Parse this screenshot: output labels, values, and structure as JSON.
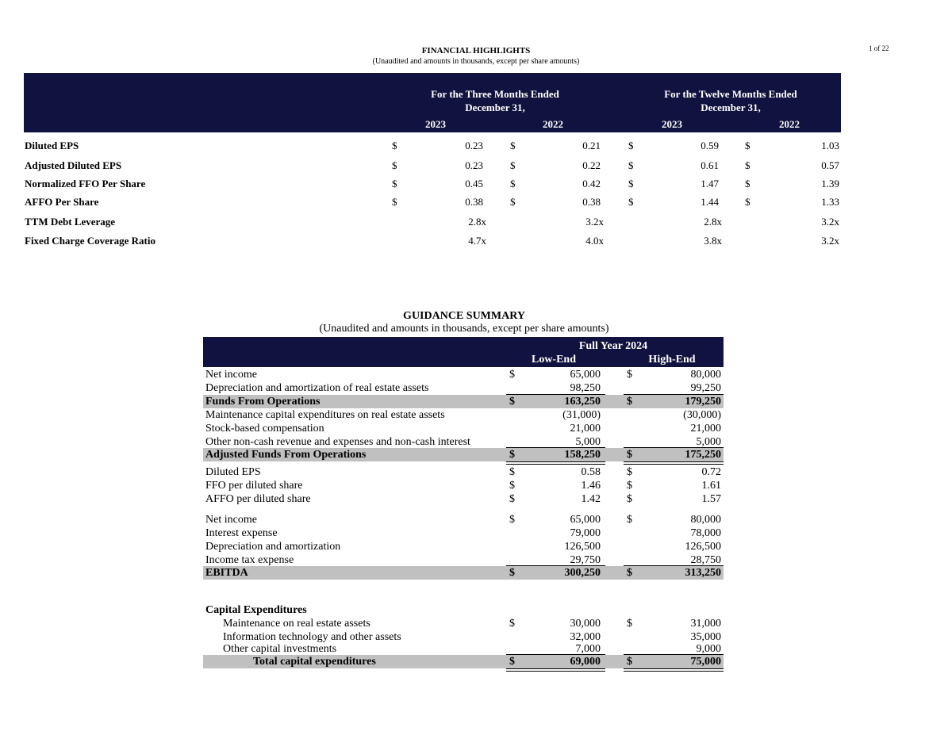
{
  "page_number": "1 of 22",
  "financial_highlights": {
    "title": "FINANCIAL HIGHLIGHTS",
    "subtitle": "(Unaudited and amounts in thousands, except per share amounts)",
    "header": {
      "three_months": "For the Three Months Ended",
      "twelve_months": "For the Twelve Months Ended",
      "date": "December 31,",
      "years": [
        "2023",
        "2022",
        "2023",
        "2022"
      ]
    },
    "rows": [
      {
        "label": "Diluted EPS",
        "cur": [
          "$",
          "$",
          "$",
          "$"
        ],
        "values": [
          "0.23",
          "0.21",
          "0.59",
          "1.03"
        ]
      },
      {
        "label": "Adjusted Diluted EPS",
        "cur": [
          "$",
          "$",
          "$",
          "$"
        ],
        "values": [
          "0.23",
          "0.22",
          "0.61",
          "0.57"
        ]
      },
      {
        "label": "Normalized FFO Per Share",
        "cur": [
          "$",
          "$",
          "$",
          "$"
        ],
        "values": [
          "0.45",
          "0.42",
          "1.47",
          "1.39"
        ]
      },
      {
        "label": "AFFO Per Share",
        "cur": [
          "$",
          "$",
          "$",
          "$"
        ],
        "values": [
          "0.38",
          "0.38",
          "1.44",
          "1.33"
        ]
      },
      {
        "label": "TTM Debt Leverage",
        "cur": [
          "",
          "",
          "",
          ""
        ],
        "values": [
          "2.8x",
          "3.2x",
          "2.8x",
          "3.2x"
        ]
      },
      {
        "label": "Fixed Charge Coverage Ratio",
        "cur": [
          "",
          "",
          "",
          ""
        ],
        "values": [
          "4.7x",
          "4.0x",
          "3.8x",
          "3.2x"
        ]
      }
    ]
  },
  "guidance_summary": {
    "title": "GUIDANCE SUMMARY",
    "subtitle": "(Unaudited and amounts in thousands, except per share amounts)",
    "header": {
      "period": "Full Year 2024",
      "low": "Low-End",
      "high": "High-End"
    },
    "rows": [
      {
        "label": "Net income",
        "low_cur": "$",
        "low": "65,000",
        "high_cur": "$",
        "high": "80,000"
      },
      {
        "label": "Depreciation and amortization of real estate assets",
        "low_cur": "",
        "low": "98,250",
        "high_cur": "",
        "high": "99,250"
      },
      {
        "label": "Funds From Operations",
        "low_cur": "$",
        "low": "163,250",
        "high_cur": "$",
        "high": "179,250"
      },
      {
        "label": "Maintenance capital expenditures on real estate assets",
        "low_cur": "",
        "low": "(31,000)",
        "high_cur": "",
        "high": "(30,000)"
      },
      {
        "label": "Stock-based compensation",
        "low_cur": "",
        "low": "21,000",
        "high_cur": "",
        "high": "21,000"
      },
      {
        "label": "Other non-cash revenue and expenses and non-cash interest",
        "low_cur": "",
        "low": "5,000",
        "high_cur": "",
        "high": "5,000"
      },
      {
        "label": "Adjusted Funds From Operations",
        "low_cur": "$",
        "low": "158,250",
        "high_cur": "$",
        "high": "175,250"
      },
      {
        "label": "Diluted EPS",
        "low_cur": "$",
        "low": "0.58",
        "high_cur": "$",
        "high": "0.72"
      },
      {
        "label": "FFO per diluted share",
        "low_cur": "$",
        "low": "1.46",
        "high_cur": "$",
        "high": "1.61"
      },
      {
        "label": "AFFO per diluted share",
        "low_cur": "$",
        "low": "1.42",
        "high_cur": "$",
        "high": "1.57"
      },
      {
        "label": "Net income",
        "low_cur": "$",
        "low": "65,000",
        "high_cur": "$",
        "high": "80,000"
      },
      {
        "label": "Interest expense",
        "low_cur": "",
        "low": "79,000",
        "high_cur": "",
        "high": "78,000"
      },
      {
        "label": "Depreciation and amortization",
        "low_cur": "",
        "low": "126,500",
        "high_cur": "",
        "high": "126,500"
      },
      {
        "label": "Income tax expense",
        "low_cur": "",
        "low": "29,750",
        "high_cur": "",
        "high": "28,750"
      },
      {
        "label": "EBITDA",
        "low_cur": "$",
        "low": "300,250",
        "high_cur": "$",
        "high": "313,250"
      },
      {
        "label": "Capital Expenditures",
        "low_cur": "",
        "low": "",
        "high_cur": "",
        "high": ""
      },
      {
        "label": "Maintenance on real estate assets",
        "low_cur": "$",
        "low": "30,000",
        "high_cur": "$",
        "high": "31,000"
      },
      {
        "label": "Information technology and other assets",
        "low_cur": "",
        "low": "32,000",
        "high_cur": "",
        "high": "35,000"
      },
      {
        "label": "Other capital investments",
        "low_cur": "",
        "low": "7,000",
        "high_cur": "",
        "high": "9,000"
      },
      {
        "label": "Total capital expenditures",
        "low_cur": "$",
        "low": "69,000",
        "high_cur": "$",
        "high": "75,000"
      }
    ]
  }
}
